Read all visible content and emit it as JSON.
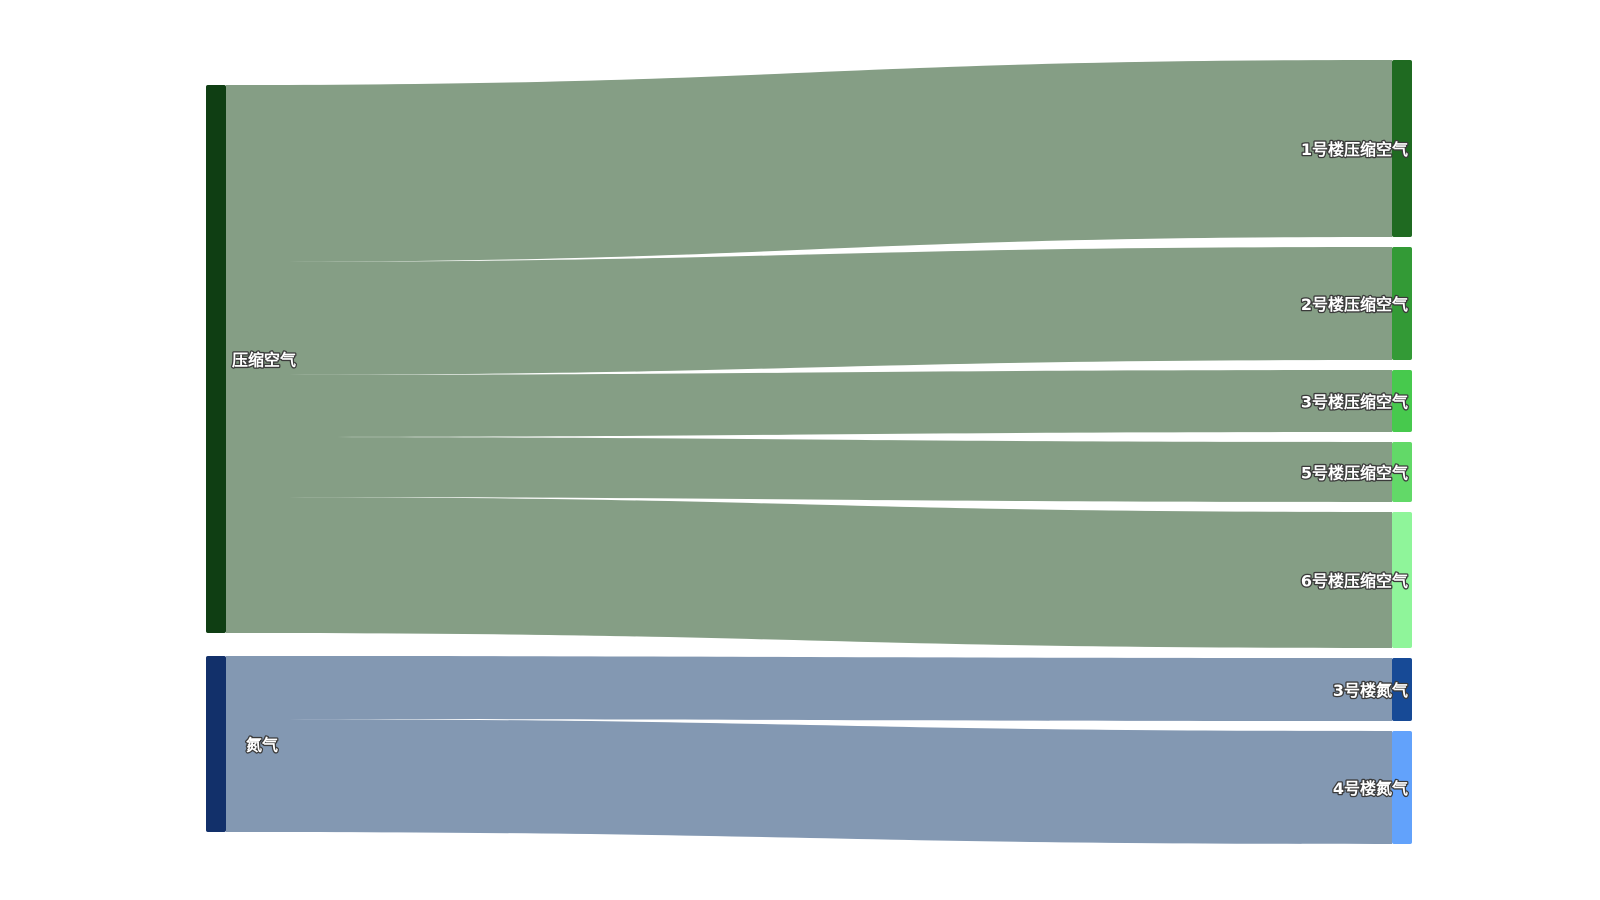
{
  "chart_data": {
    "type": "sankey",
    "nodes": [
      {
        "id": "compressed-air",
        "name": "压缩空气",
        "color": "#0f3e13",
        "side": "source"
      },
      {
        "id": "nitrogen",
        "name": "氮气",
        "color": "#12306a",
        "side": "source"
      },
      {
        "id": "b1-air",
        "name": "1号楼压缩空气",
        "color": "#1f6a21",
        "side": "target"
      },
      {
        "id": "b2-air",
        "name": "2号楼压缩空气",
        "color": "#339a36",
        "side": "target"
      },
      {
        "id": "b3-air",
        "name": "3号楼压缩空气",
        "color": "#47c94d",
        "side": "target"
      },
      {
        "id": "b5-air",
        "name": "5号楼压缩空气",
        "color": "#62d968",
        "side": "target"
      },
      {
        "id": "b6-air",
        "name": "6号楼压缩空气",
        "color": "#8ff59a",
        "side": "target"
      },
      {
        "id": "b3-n2",
        "name": "3号楼氮气",
        "color": "#174a96",
        "side": "target"
      },
      {
        "id": "b4-n2",
        "name": "4号楼氮气",
        "color": "#62a2fb",
        "side": "target"
      }
    ],
    "links": [
      {
        "source": "compressed-air",
        "target": "b1-air",
        "value": 17.7,
        "color": "#859e85"
      },
      {
        "source": "compressed-air",
        "target": "b2-air",
        "value": 11.3,
        "color": "#859e85"
      },
      {
        "source": "compressed-air",
        "target": "b3-air",
        "value": 6.2,
        "color": "#859e85"
      },
      {
        "source": "compressed-air",
        "target": "b5-air",
        "value": 6.0,
        "color": "#859e85"
      },
      {
        "source": "compressed-air",
        "target": "b6-air",
        "value": 13.6,
        "color": "#859e85"
      },
      {
        "source": "nitrogen",
        "target": "b3-n2",
        "value": 6.3,
        "color": "#8398b2"
      },
      {
        "source": "nitrogen",
        "target": "b4-n2",
        "value": 11.3,
        "color": "#8398b2"
      }
    ]
  }
}
